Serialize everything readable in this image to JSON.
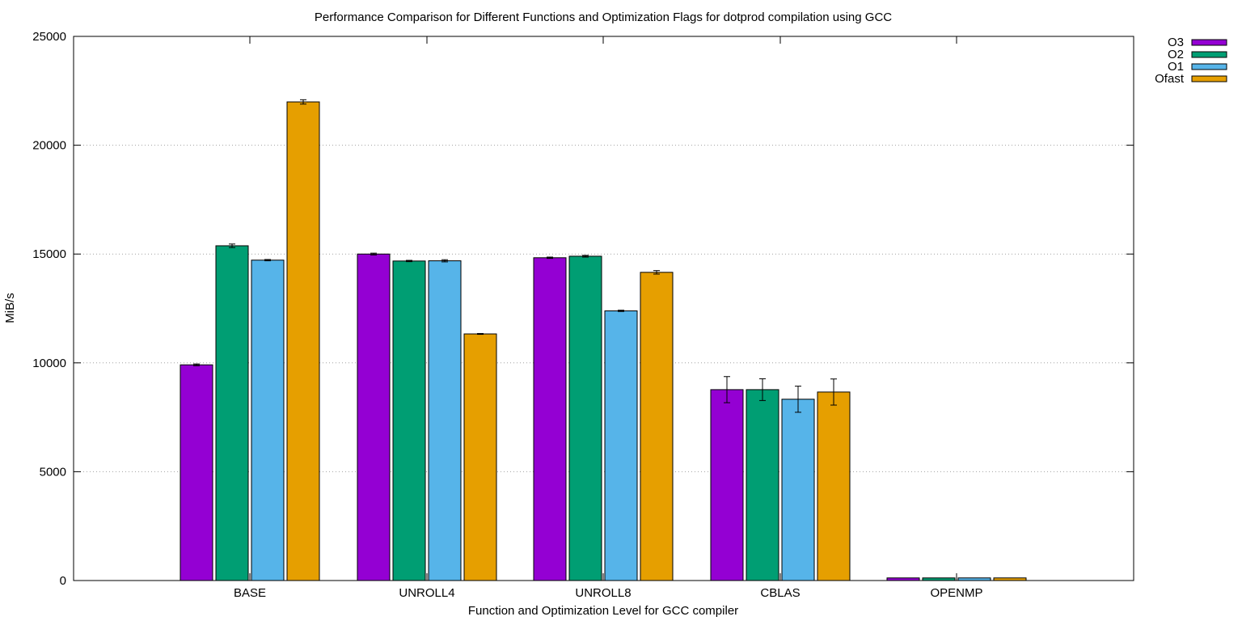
{
  "chart_data": {
    "type": "bar",
    "title": "Performance Comparison for Different Functions and Optimization Flags for dotprod compilation using GCC",
    "xlabel": "Function and Optimization Level for GCC compiler",
    "ylabel": "MiB/s",
    "ylim": [
      0,
      25000
    ],
    "yticks": [
      0,
      5000,
      10000,
      15000,
      20000,
      25000
    ],
    "ytick_labels": [
      "0",
      "5000",
      "10000",
      "15000",
      "20000",
      "25000"
    ],
    "grid": "horizontal dotted",
    "legend_position": "top-right, outside plot",
    "categories": [
      "BASE",
      "UNROLL4",
      "UNROLL8",
      "CBLAS",
      "OPENMP"
    ],
    "series": [
      {
        "name": "O3",
        "color": "#9400d3",
        "values": [
          9910,
          15000,
          14830,
          8770,
          120
        ],
        "errors": [
          40,
          40,
          30,
          600,
          0
        ]
      },
      {
        "name": "O2",
        "color": "#009e73",
        "values": [
          15380,
          14680,
          14900,
          8770,
          120
        ],
        "errors": [
          80,
          30,
          40,
          500,
          0
        ]
      },
      {
        "name": "O1",
        "color": "#56b4e9",
        "values": [
          14720,
          14690,
          12390,
          8330,
          120
        ],
        "errors": [
          30,
          50,
          30,
          600,
          0
        ]
      },
      {
        "name": "Ofast",
        "color": "#e69f00",
        "values": [
          21990,
          11330,
          14160,
          8660,
          120
        ],
        "errors": [
          100,
          20,
          80,
          600,
          0
        ]
      }
    ]
  }
}
